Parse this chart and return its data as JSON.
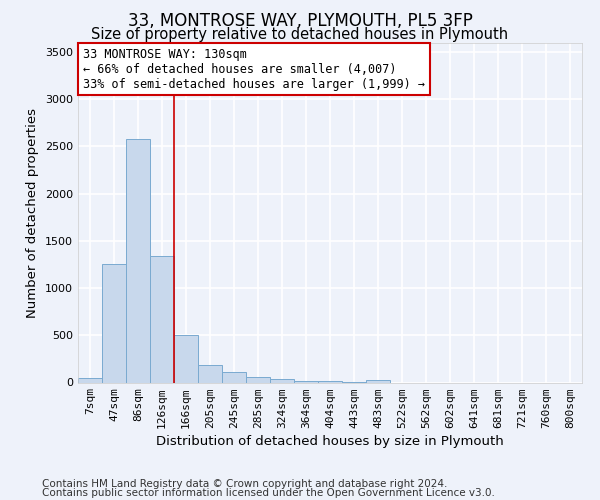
{
  "title": "33, MONTROSE WAY, PLYMOUTH, PL5 3FP",
  "subtitle": "Size of property relative to detached houses in Plymouth",
  "xlabel": "Distribution of detached houses by size in Plymouth",
  "ylabel": "Number of detached properties",
  "categories": [
    "7sqm",
    "47sqm",
    "86sqm",
    "126sqm",
    "166sqm",
    "205sqm",
    "245sqm",
    "285sqm",
    "324sqm",
    "364sqm",
    "404sqm",
    "443sqm",
    "483sqm",
    "522sqm",
    "562sqm",
    "602sqm",
    "641sqm",
    "681sqm",
    "721sqm",
    "760sqm",
    "800sqm"
  ],
  "values": [
    50,
    1250,
    2580,
    1340,
    500,
    190,
    110,
    55,
    35,
    20,
    15,
    10,
    30,
    0,
    0,
    0,
    0,
    0,
    0,
    0,
    0
  ],
  "bar_color": "#c8d8ec",
  "bar_edge_color": "#7aaad0",
  "ylim": [
    0,
    3600
  ],
  "yticks": [
    0,
    500,
    1000,
    1500,
    2000,
    2500,
    3000,
    3500
  ],
  "annotation_title": "33 MONTROSE WAY: 130sqm",
  "annotation_line1": "← 66% of detached houses are smaller (4,007)",
  "annotation_line2": "33% of semi-detached houses are larger (1,999) →",
  "annotation_box_color": "#ffffff",
  "annotation_box_edge": "#cc0000",
  "vline_color": "#cc0000",
  "vline_x": 3.5,
  "footer1": "Contains HM Land Registry data © Crown copyright and database right 2024.",
  "footer2": "Contains public sector information licensed under the Open Government Licence v3.0.",
  "background_color": "#eef2fa",
  "grid_color": "#ffffff",
  "title_fontsize": 12,
  "subtitle_fontsize": 10.5,
  "axis_label_fontsize": 9.5,
  "tick_fontsize": 8,
  "annotation_fontsize": 8.5,
  "footer_fontsize": 7.5
}
